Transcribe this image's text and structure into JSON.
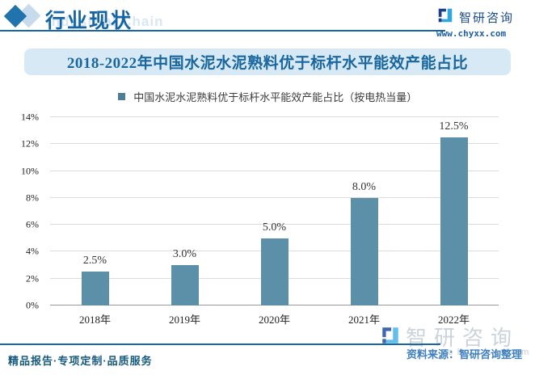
{
  "header": {
    "brand_title": "行业现状",
    "brand_watermark": "Industrial Chain",
    "brand_name": "智研咨询",
    "brand_site": "www.chyxx.com"
  },
  "title": "2018-2022年中国水泥水泥熟料优于标杆水平能效产能占比",
  "legend": {
    "label": "中国水泥水泥熟料优于标杆水平能效产能占比（按电热当量）",
    "marker_color": "#4C7E95"
  },
  "chart_data": {
    "type": "bar",
    "title": "2018-2022年中国水泥水泥熟料优于标杆水平能效产能占比",
    "legend": [
      "中国水泥水泥熟料优于标杆水平能效产能占比（按电热当量）"
    ],
    "legend_position": "top",
    "categories": [
      "2018年",
      "2019年",
      "2020年",
      "2021年",
      "2022年"
    ],
    "values": [
      2.5,
      3.0,
      5.0,
      8.0,
      12.5
    ],
    "value_labels": [
      "2.5%",
      "3.0%",
      "5.0%",
      "8.0%",
      "12.5%"
    ],
    "xlabel": "",
    "ylabel": "",
    "ylim": [
      0,
      14
    ],
    "ytick_step": 2,
    "ytick_labels": [
      "0%",
      "2%",
      "4%",
      "6%",
      "8%",
      "10%",
      "12%",
      "14%"
    ],
    "grid": true,
    "bar_color": "#5B90A8"
  },
  "watermark": {
    "brand": "智研咨询",
    "site": "www.chyxx.com"
  },
  "source_note": "资料来源：智研咨询整理",
  "footer": {
    "slogan": "精品报告·专项定制·品质服务"
  },
  "colors": {
    "accent_blue": "#1767A6",
    "title_text": "#19679E",
    "title_band_bg": "#D8E9F6",
    "bar_fill": "#5B90A8",
    "legend_marker": "#4C7E95",
    "gridline": "#DCDCDC",
    "axis_line": "#9A9A9A",
    "source_text": "#3F80C1",
    "footer_text": "#165A7D",
    "watermark_gray": "#CBD3DB"
  }
}
